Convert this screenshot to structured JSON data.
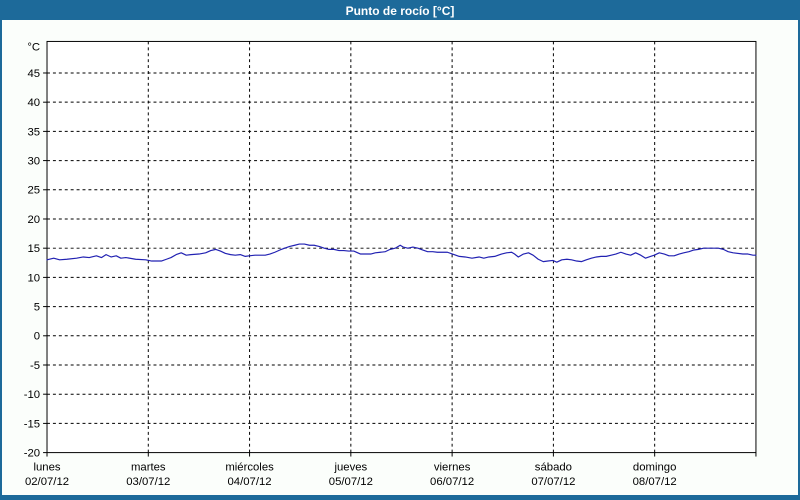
{
  "window": {
    "title": "Punto de rocío [°C]",
    "colors": {
      "titlebar_bg": "#1d6a9a",
      "border": "#1d6a9a",
      "window_bg": "#fbfefb",
      "plot_bg": "#ffffff",
      "grid": "#000000",
      "axis": "#000000",
      "text": "#000000",
      "line": "#2121b2"
    }
  },
  "chart_data": {
    "type": "line",
    "title": "Punto de rocío [°C]",
    "y_unit_label": "°C",
    "ylim": [
      -20,
      50.4
    ],
    "yticks": [
      45,
      40,
      35,
      30,
      25,
      20,
      15,
      10,
      5,
      0,
      -5,
      -10,
      -15,
      -20
    ],
    "xlim_hours": [
      0,
      168
    ],
    "grid": "dashed",
    "x_ticks": [
      {
        "hour": 0,
        "day": "lunes",
        "date": "02/07/12"
      },
      {
        "hour": 24,
        "day": "martes",
        "date": "03/07/12"
      },
      {
        "hour": 48,
        "day": "miércoles",
        "date": "04/07/12"
      },
      {
        "hour": 72,
        "day": "jueves",
        "date": "05/07/12"
      },
      {
        "hour": 96,
        "day": "viernes",
        "date": "06/07/12"
      },
      {
        "hour": 120,
        "day": "sábado",
        "date": "07/07/12"
      },
      {
        "hour": 144,
        "day": "domingo",
        "date": "08/07/12"
      }
    ],
    "series": [
      {
        "name": "Punto de rocío",
        "color": "#2121b2",
        "points": [
          [
            0,
            13.0
          ],
          [
            1.6,
            13.3
          ],
          [
            3,
            13.0
          ],
          [
            4.7,
            13.1
          ],
          [
            7,
            13.3
          ],
          [
            8.6,
            13.5
          ],
          [
            10,
            13.4
          ],
          [
            11.7,
            13.7
          ],
          [
            12.9,
            13.4
          ],
          [
            14,
            13.9
          ],
          [
            15.2,
            13.5
          ],
          [
            16.4,
            13.7
          ],
          [
            17.5,
            13.3
          ],
          [
            18.7,
            13.4
          ],
          [
            21,
            13.1
          ],
          [
            23.4,
            13.0
          ],
          [
            24.8,
            12.8
          ],
          [
            27.1,
            12.8
          ],
          [
            28.3,
            13.1
          ],
          [
            29.4,
            13.4
          ],
          [
            30.6,
            13.9
          ],
          [
            31.8,
            14.2
          ],
          [
            33,
            13.8
          ],
          [
            34.1,
            13.9
          ],
          [
            36,
            14.0
          ],
          [
            37.6,
            14.2
          ],
          [
            38.8,
            14.6
          ],
          [
            40,
            14.8
          ],
          [
            41.1,
            14.5
          ],
          [
            42.3,
            14.1
          ],
          [
            43.5,
            13.9
          ],
          [
            44.6,
            13.8
          ],
          [
            45.8,
            13.9
          ],
          [
            47,
            13.6
          ],
          [
            47.9,
            13.7
          ],
          [
            49.3,
            13.8
          ],
          [
            51.7,
            13.8
          ],
          [
            52.8,
            14.0
          ],
          [
            54,
            14.3
          ],
          [
            55.2,
            14.7
          ],
          [
            56.3,
            15.0
          ],
          [
            57.5,
            15.3
          ],
          [
            58.7,
            15.5
          ],
          [
            59.8,
            15.7
          ],
          [
            61,
            15.7
          ],
          [
            62.2,
            15.5
          ],
          [
            63.3,
            15.5
          ],
          [
            64.5,
            15.3
          ],
          [
            65.7,
            15.0
          ],
          [
            66.8,
            14.8
          ],
          [
            68,
            14.8
          ],
          [
            69.2,
            14.6
          ],
          [
            70.3,
            14.6
          ],
          [
            71.5,
            14.5
          ],
          [
            72.7,
            14.5
          ],
          [
            74.3,
            14.0
          ],
          [
            76.7,
            14.0
          ],
          [
            77.8,
            14.2
          ],
          [
            79,
            14.3
          ],
          [
            80.2,
            14.4
          ],
          [
            81.3,
            14.8
          ],
          [
            82.5,
            15.0
          ],
          [
            83.7,
            15.5
          ],
          [
            84.4,
            15.2
          ],
          [
            85.5,
            15.0
          ],
          [
            86.7,
            15.2
          ],
          [
            87.9,
            15.0
          ],
          [
            89,
            14.7
          ],
          [
            90.2,
            14.4
          ],
          [
            91.4,
            14.4
          ],
          [
            92.5,
            14.3
          ],
          [
            94.9,
            14.3
          ],
          [
            96.1,
            14.0
          ],
          [
            97.7,
            13.6
          ],
          [
            99.1,
            13.5
          ],
          [
            100.7,
            13.3
          ],
          [
            102.4,
            13.5
          ],
          [
            103.5,
            13.3
          ],
          [
            104.7,
            13.5
          ],
          [
            106.1,
            13.6
          ],
          [
            107.7,
            14.0
          ],
          [
            108.9,
            14.2
          ],
          [
            110.1,
            14.3
          ],
          [
            110.8,
            14.0
          ],
          [
            111.7,
            13.5
          ],
          [
            112.9,
            14.0
          ],
          [
            114.1,
            14.2
          ],
          [
            115.2,
            13.8
          ],
          [
            116.4,
            13.1
          ],
          [
            117.6,
            12.7
          ],
          [
            118.7,
            12.8
          ],
          [
            119.9,
            12.9
          ],
          [
            120.8,
            12.6
          ],
          [
            122,
            13.0
          ],
          [
            123.2,
            13.1
          ],
          [
            124.3,
            13.0
          ],
          [
            125.5,
            12.8
          ],
          [
            126.7,
            12.7
          ],
          [
            127.8,
            13.0
          ],
          [
            129,
            13.3
          ],
          [
            130.2,
            13.5
          ],
          [
            131.3,
            13.6
          ],
          [
            132.5,
            13.6
          ],
          [
            133.7,
            13.8
          ],
          [
            134.8,
            14.0
          ],
          [
            136,
            14.3
          ],
          [
            137.2,
            14.0
          ],
          [
            138.3,
            13.8
          ],
          [
            139.5,
            14.2
          ],
          [
            140.7,
            13.8
          ],
          [
            141.8,
            13.3
          ],
          [
            143,
            13.6
          ],
          [
            143.9,
            13.8
          ],
          [
            145.1,
            14.2
          ],
          [
            146.3,
            14.0
          ],
          [
            147.4,
            13.7
          ],
          [
            148.6,
            13.7
          ],
          [
            149.8,
            14.0
          ],
          [
            150.9,
            14.2
          ],
          [
            152.1,
            14.4
          ],
          [
            153.3,
            14.7
          ],
          [
            154.4,
            14.8
          ],
          [
            155.6,
            15.0
          ],
          [
            157.9,
            15.0
          ],
          [
            159.1,
            15.0
          ],
          [
            160.3,
            14.8
          ],
          [
            161.4,
            14.4
          ],
          [
            162.6,
            14.2
          ],
          [
            164.9,
            14.0
          ],
          [
            166.1,
            14.0
          ],
          [
            167.3,
            13.8
          ],
          [
            168,
            13.8
          ]
        ]
      }
    ]
  }
}
